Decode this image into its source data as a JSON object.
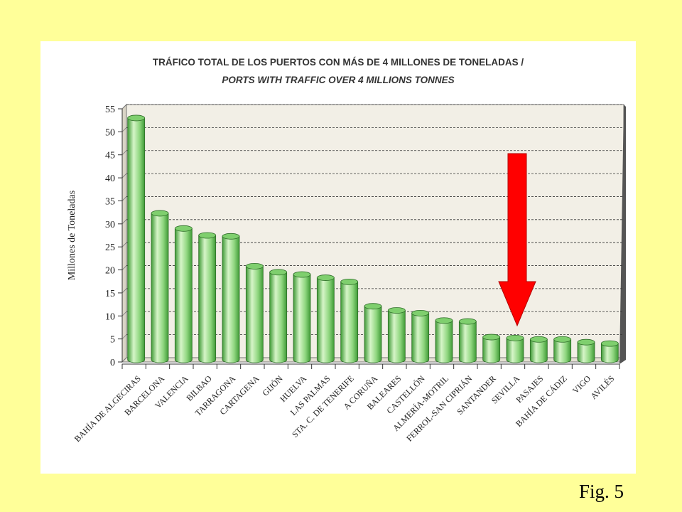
{
  "figure_label": "Fig. 5",
  "colors": {
    "background": "#ffff99",
    "panel": "#ffffff",
    "plot_back": "#f2efe6",
    "bar_light": "#d6f5c8",
    "bar_mid": "#8fd67f",
    "bar_dark": "#3f9a36",
    "arrow": "#ff0000"
  },
  "chart_data": {
    "type": "bar",
    "title": "TRÁFICO TOTAL DE LOS PUERTOS CON MÁS DE 4 MILLONES DE TONELADAS /",
    "subtitle": "PORTS WITH TRAFFIC OVER 4 MILLIONS TONNES",
    "ylabel": "Millones de Toneladas",
    "xlabel": "",
    "ylim": [
      0,
      55
    ],
    "yticks": [
      0,
      5,
      10,
      15,
      20,
      25,
      30,
      35,
      40,
      45,
      50,
      55
    ],
    "grid": true,
    "categories": [
      "BAHÍA DE ALGECIRAS",
      "BARCELONA",
      "VALENCIA",
      "BILBAO",
      "TARRAGONA",
      "CARTAGENA",
      "GIJÓN",
      "HUELVA",
      "LAS PALMAS",
      "STA. C. DE TENERIFE",
      "A CORUÑA",
      "BALEARES",
      "CASTELLÓN",
      "ALMERÍA-MOTRIL",
      "FERROL-SAN CIPRIÁN",
      "SANTANDER",
      "SEVILLA",
      "PASAJES",
      "BAHÍA DE CÁDIZ",
      "VIGO",
      "AVILÉS"
    ],
    "values": [
      53,
      32.3,
      29,
      27.5,
      27.3,
      20.8,
      19.5,
      19,
      18.3,
      17.4,
      12.1,
      11.2,
      10.6,
      9,
      8.8,
      5.4,
      5.2,
      4.9,
      4.9,
      4.3,
      4
    ],
    "annotation": {
      "type": "arrow",
      "direction": "down",
      "target_category": "SEVILLA"
    }
  }
}
